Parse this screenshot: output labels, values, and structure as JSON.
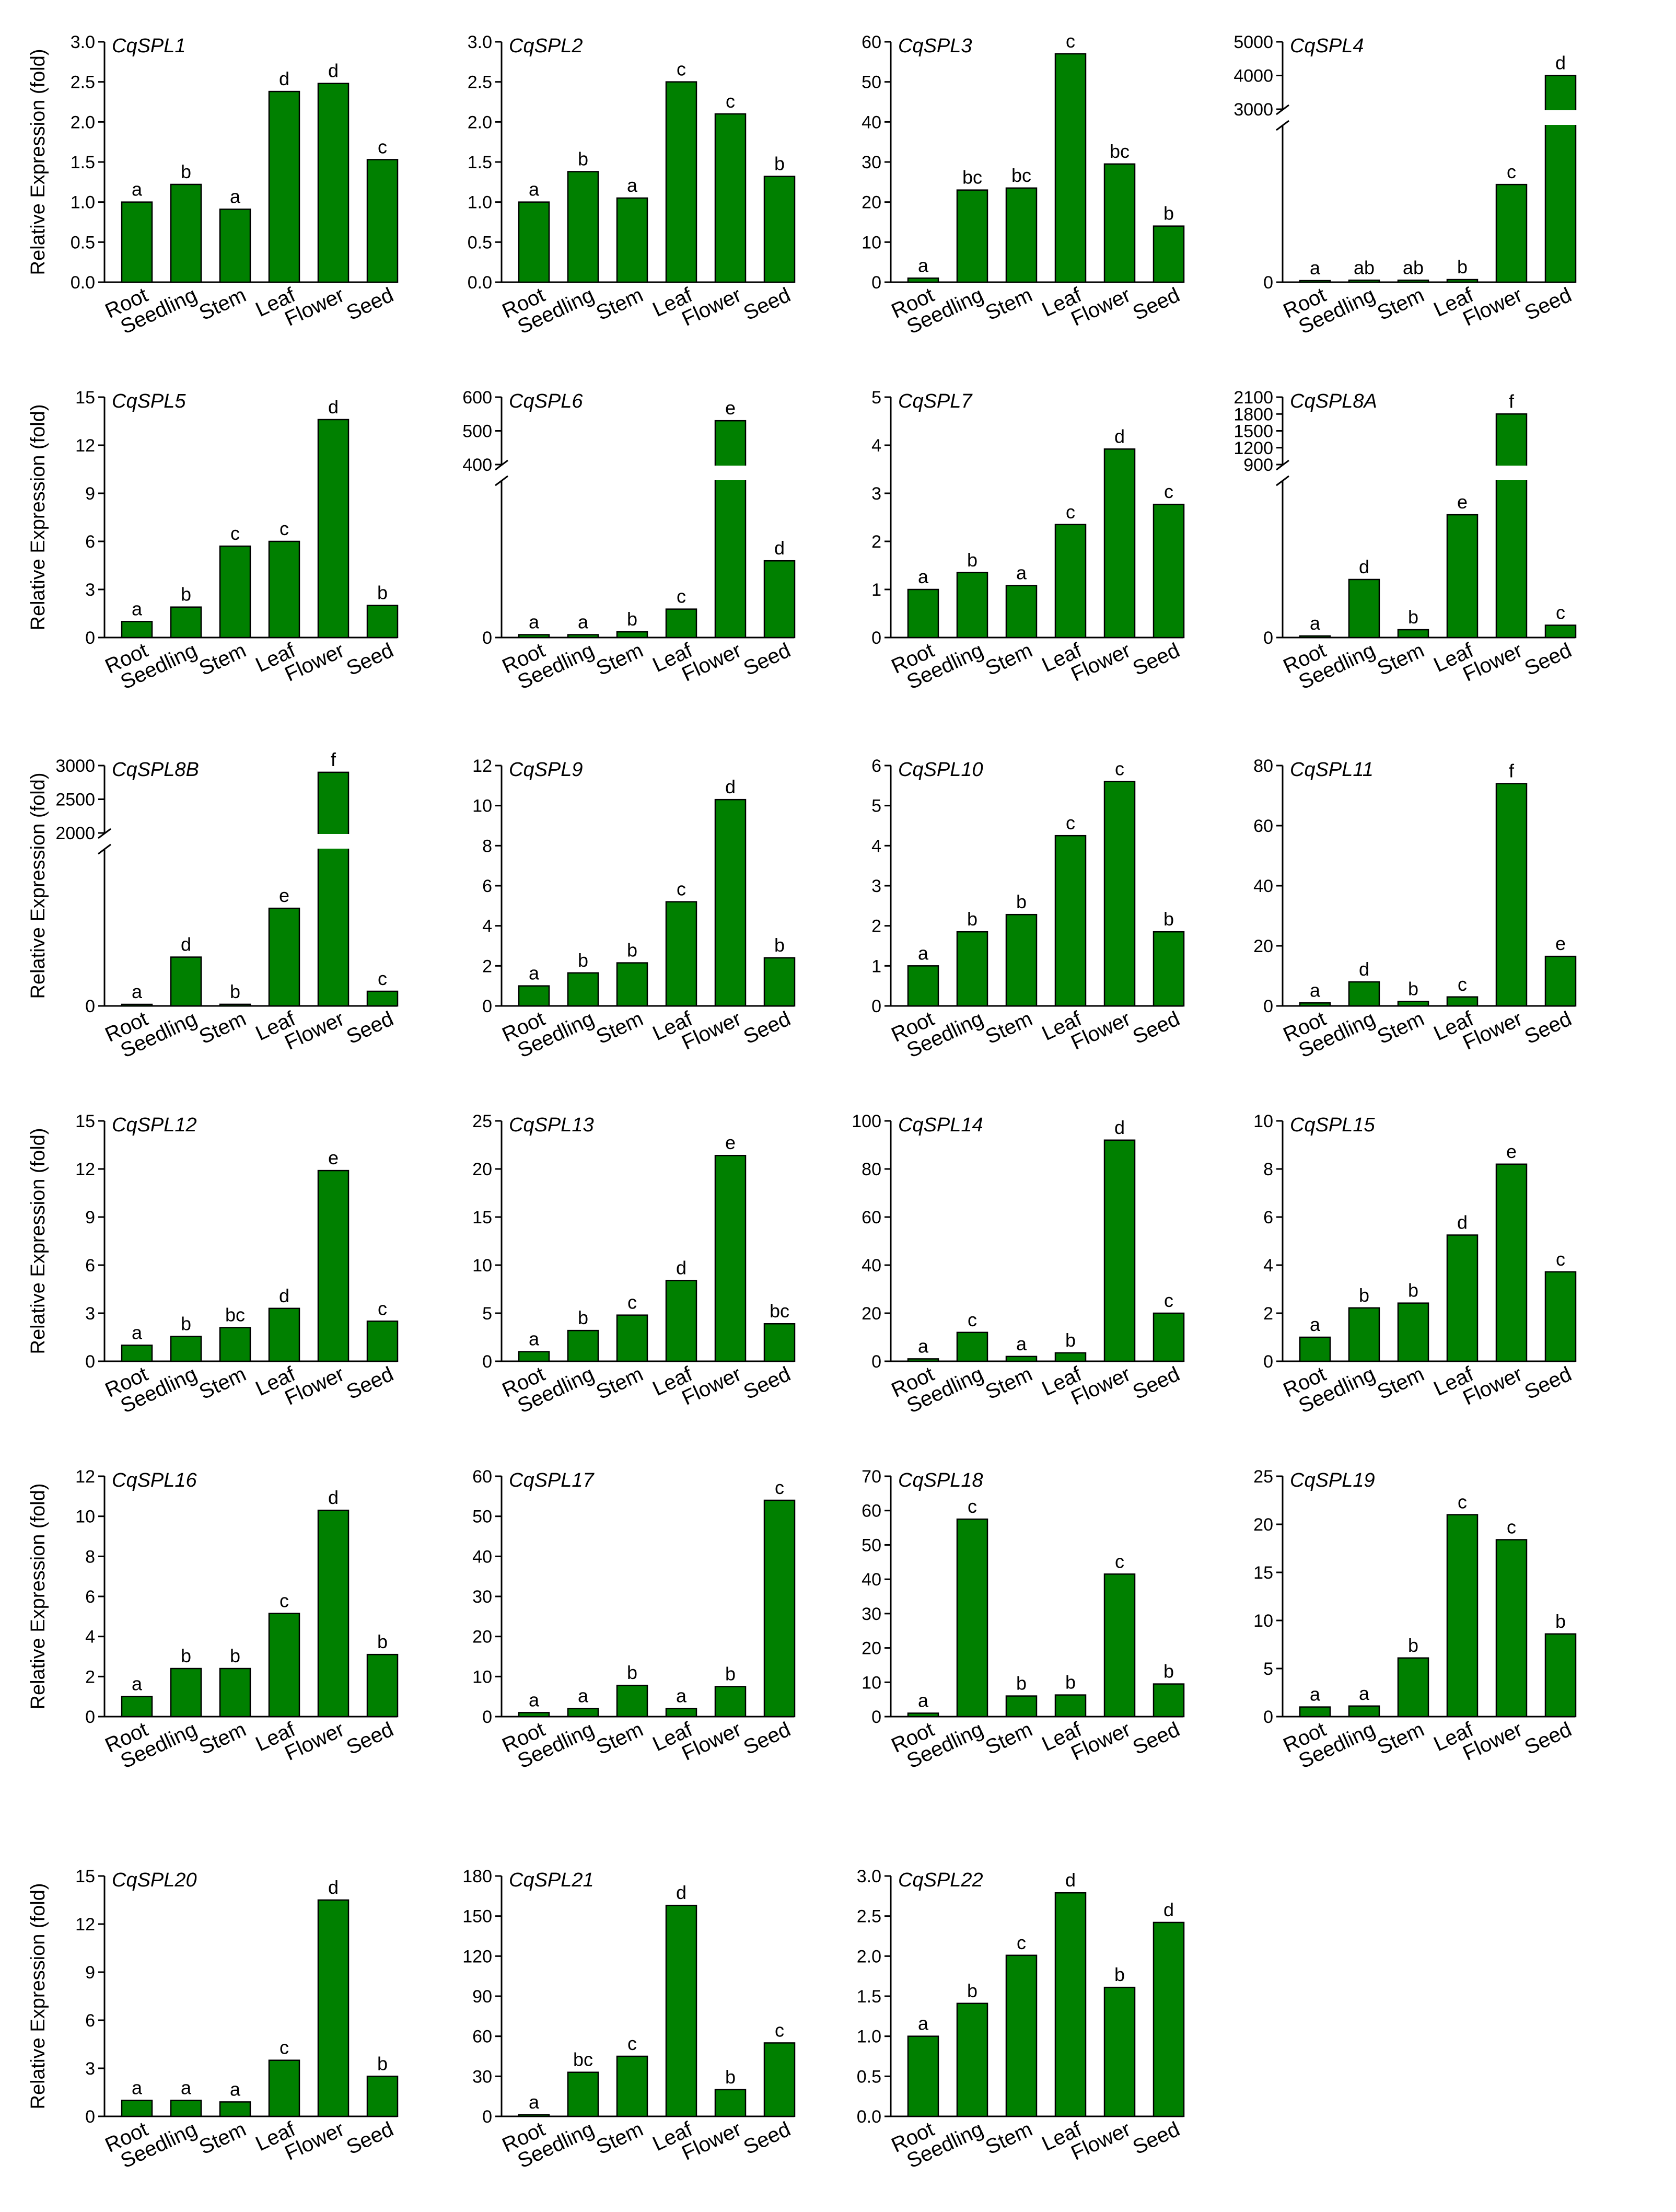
{
  "figure": {
    "y_axis_title": "Relative Expression (fold)",
    "bar_color": "#008000",
    "bar_stroke": "#000000"
  },
  "chart_data": [
    {
      "type": "bar",
      "title": "CqSPL1",
      "categories": [
        "Root",
        "Seedling",
        "Stem",
        "Leaf",
        "Flower",
        "Seed"
      ],
      "values": [
        1.0,
        1.22,
        0.91,
        2.38,
        2.48,
        1.53
      ],
      "letters": [
        "a",
        "b",
        "a",
        "d",
        "d",
        "c"
      ],
      "ylim": [
        0,
        3.0
      ],
      "yticks": [
        "0.0",
        "0.5",
        "1.0",
        "1.5",
        "2.0",
        "2.5",
        "3.0"
      ]
    },
    {
      "type": "bar",
      "title": "CqSPL2",
      "categories": [
        "Root",
        "Seedling",
        "Stem",
        "Leaf",
        "Flower",
        "Seed"
      ],
      "values": [
        1.0,
        1.38,
        1.05,
        2.5,
        2.1,
        1.32
      ],
      "letters": [
        "a",
        "b",
        "a",
        "c",
        "c",
        "b"
      ],
      "ylim": [
        0,
        3.0
      ],
      "yticks": [
        "0.0",
        "0.5",
        "1.0",
        "1.5",
        "2.0",
        "2.5",
        "3.0"
      ]
    },
    {
      "type": "bar",
      "title": "CqSPL3",
      "categories": [
        "Root",
        "Seedling",
        "Stem",
        "Leaf",
        "Flower",
        "Seed"
      ],
      "values": [
        1,
        23,
        23.5,
        57,
        29.5,
        14
      ],
      "letters": [
        "a",
        "bc",
        "bc",
        "c",
        "bc",
        "b"
      ],
      "ylim": [
        0,
        60
      ],
      "yticks": [
        "0",
        "10",
        "20",
        "30",
        "40",
        "50",
        "60"
      ]
    },
    {
      "type": "bar",
      "title": "CqSPL4",
      "categories": [
        "Root",
        "Seedling",
        "Stem",
        "Leaf",
        "Flower",
        "Seed"
      ],
      "values": [
        10,
        30,
        30,
        40,
        1500,
        4000
      ],
      "letters": [
        "a",
        "ab",
        "ab",
        "b",
        "c",
        "d"
      ],
      "ylim": [
        0,
        5000
      ],
      "yticks": [
        "0",
        "3000",
        "4000",
        "5000"
      ],
      "broken": {
        "low_max": 2400,
        "high_min": 3000,
        "high_max": 5000
      },
      "break_note": "y-axis broken between 2400 and 3000"
    },
    {
      "type": "bar",
      "title": "CqSPL5",
      "categories": [
        "Root",
        "Seedling",
        "Stem",
        "Leaf",
        "Flower",
        "Seed"
      ],
      "values": [
        1.0,
        1.9,
        5.7,
        6.0,
        13.6,
        2.0
      ],
      "letters": [
        "a",
        "b",
        "c",
        "c",
        "d",
        "b"
      ],
      "ylim": [
        0,
        15
      ],
      "yticks": [
        "0",
        "3",
        "6",
        "9",
        "12",
        "15"
      ]
    },
    {
      "type": "bar",
      "title": "CqSPL6",
      "categories": [
        "Root",
        "Seedling",
        "Stem",
        "Leaf",
        "Flower",
        "Seed"
      ],
      "values": [
        1,
        1,
        2,
        10,
        530,
        27
      ],
      "letters": [
        "a",
        "a",
        "b",
        "c",
        "e",
        "d"
      ],
      "ylim": [
        0,
        600
      ],
      "yticks": [
        "0",
        "400",
        "500",
        "600"
      ],
      "broken": {
        "low_max": 55,
        "high_min": 400,
        "high_max": 600
      },
      "break_note": "y-axis broken between 55 and 400"
    },
    {
      "type": "bar",
      "title": "CqSPL7",
      "categories": [
        "Root",
        "Seedling",
        "Stem",
        "Leaf",
        "Flower",
        "Seed"
      ],
      "values": [
        1.0,
        1.35,
        1.08,
        2.35,
        3.92,
        2.77
      ],
      "letters": [
        "a",
        "b",
        "a",
        "c",
        "d",
        "c"
      ],
      "ylim": [
        0,
        5
      ],
      "yticks": [
        "0",
        "1",
        "2",
        "3",
        "4",
        "5"
      ]
    },
    {
      "type": "bar",
      "title": "CqSPL8A",
      "categories": [
        "Root",
        "Seedling",
        "Stem",
        "Leaf",
        "Flower",
        "Seed"
      ],
      "values": [
        1,
        52,
        7,
        110,
        1800,
        11
      ],
      "letters": [
        "a",
        "d",
        "b",
        "e",
        "f",
        "c"
      ],
      "ylim": [
        0,
        2100
      ],
      "yticks": [
        "0",
        "900",
        "1200",
        "1500",
        "1800",
        "2100"
      ],
      "broken": {
        "low_max": 140,
        "high_min": 900,
        "high_max": 2100
      },
      "break_note": "y-axis broken between 140 and 900"
    },
    {
      "type": "bar",
      "title": "CqSPL8B",
      "categories": [
        "Root",
        "Seedling",
        "Stem",
        "Leaf",
        "Flower",
        "Seed"
      ],
      "values": [
        1,
        150,
        5,
        300,
        2900,
        45
      ],
      "letters": [
        "a",
        "d",
        "b",
        "e",
        "f",
        "c"
      ],
      "ylim": [
        0,
        3000
      ],
      "yticks": [
        "0",
        "2000",
        "2500",
        "3000"
      ],
      "broken": {
        "low_max": 480,
        "high_min": 2000,
        "high_max": 3000
      },
      "break_note": "y-axis broken between 480 and 2000"
    },
    {
      "type": "bar",
      "title": "CqSPL9",
      "categories": [
        "Root",
        "Seedling",
        "Stem",
        "Leaf",
        "Flower",
        "Seed"
      ],
      "values": [
        1.0,
        1.65,
        2.15,
        5.2,
        10.3,
        2.4
      ],
      "letters": [
        "a",
        "b",
        "b",
        "c",
        "d",
        "b"
      ],
      "ylim": [
        0,
        12
      ],
      "yticks": [
        "0",
        "2",
        "4",
        "6",
        "8",
        "10",
        "12"
      ]
    },
    {
      "type": "bar",
      "title": "CqSPL10",
      "categories": [
        "Root",
        "Seedling",
        "Stem",
        "Leaf",
        "Flower",
        "Seed"
      ],
      "values": [
        1.0,
        1.85,
        2.28,
        4.25,
        5.6,
        1.85
      ],
      "letters": [
        "a",
        "b",
        "b",
        "c",
        "c",
        "b"
      ],
      "ylim": [
        0,
        6
      ],
      "yticks": [
        "0",
        "1",
        "2",
        "3",
        "4",
        "5",
        "6"
      ]
    },
    {
      "type": "bar",
      "title": "CqSPL11",
      "categories": [
        "Root",
        "Seedling",
        "Stem",
        "Leaf",
        "Flower",
        "Seed"
      ],
      "values": [
        1,
        8,
        1.5,
        3,
        74,
        16.5
      ],
      "letters": [
        "a",
        "d",
        "b",
        "c",
        "f",
        "e"
      ],
      "ylim": [
        0,
        80
      ],
      "yticks": [
        "0",
        "20",
        "40",
        "60",
        "80"
      ]
    },
    {
      "type": "bar",
      "title": "CqSPL12",
      "categories": [
        "Root",
        "Seedling",
        "Stem",
        "Leaf",
        "Flower",
        "Seed"
      ],
      "values": [
        1.0,
        1.55,
        2.1,
        3.3,
        11.9,
        2.5
      ],
      "letters": [
        "a",
        "b",
        "bc",
        "d",
        "e",
        "c"
      ],
      "ylim": [
        0,
        15
      ],
      "yticks": [
        "0",
        "3",
        "6",
        "9",
        "12",
        "15"
      ]
    },
    {
      "type": "bar",
      "title": "CqSPL13",
      "categories": [
        "Root",
        "Seedling",
        "Stem",
        "Leaf",
        "Flower",
        "Seed"
      ],
      "values": [
        1.0,
        3.2,
        4.8,
        8.4,
        21.4,
        3.9
      ],
      "letters": [
        "a",
        "b",
        "c",
        "d",
        "e",
        "bc"
      ],
      "ylim": [
        0,
        25
      ],
      "yticks": [
        "0",
        "5",
        "10",
        "15",
        "20",
        "25"
      ]
    },
    {
      "type": "bar",
      "title": "CqSPL14",
      "categories": [
        "Root",
        "Seedling",
        "Stem",
        "Leaf",
        "Flower",
        "Seed"
      ],
      "values": [
        1,
        12,
        2,
        3.5,
        92,
        20
      ],
      "letters": [
        "a",
        "c",
        "a",
        "b",
        "d",
        "c"
      ],
      "ylim": [
        0,
        100
      ],
      "yticks": [
        "0",
        "20",
        "40",
        "60",
        "80",
        "100"
      ]
    },
    {
      "type": "bar",
      "title": "CqSPL15",
      "categories": [
        "Root",
        "Seedling",
        "Stem",
        "Leaf",
        "Flower",
        "Seed"
      ],
      "values": [
        1.0,
        2.22,
        2.42,
        5.25,
        8.2,
        3.72
      ],
      "letters": [
        "a",
        "b",
        "b",
        "d",
        "e",
        "c"
      ],
      "ylim": [
        0,
        10
      ],
      "yticks": [
        "0",
        "2",
        "4",
        "6",
        "8",
        "10"
      ]
    },
    {
      "type": "bar",
      "title": "CqSPL16",
      "categories": [
        "Root",
        "Seedling",
        "Stem",
        "Leaf",
        "Flower",
        "Seed"
      ],
      "values": [
        1.0,
        2.4,
        2.4,
        5.15,
        10.3,
        3.1
      ],
      "letters": [
        "a",
        "b",
        "b",
        "c",
        "d",
        "b"
      ],
      "ylim": [
        0,
        12
      ],
      "yticks": [
        "0",
        "2",
        "4",
        "6",
        "8",
        "10",
        "12"
      ]
    },
    {
      "type": "bar",
      "title": "CqSPL17",
      "categories": [
        "Root",
        "Seedling",
        "Stem",
        "Leaf",
        "Flower",
        "Seed"
      ],
      "values": [
        1,
        2,
        7.8,
        2,
        7.5,
        54
      ],
      "letters": [
        "a",
        "a",
        "b",
        "a",
        "b",
        "c"
      ],
      "ylim": [
        0,
        60
      ],
      "yticks": [
        "0",
        "10",
        "20",
        "30",
        "40",
        "50",
        "60"
      ]
    },
    {
      "type": "bar",
      "title": "CqSPL18",
      "categories": [
        "Root",
        "Seedling",
        "Stem",
        "Leaf",
        "Flower",
        "Seed"
      ],
      "values": [
        1,
        57.5,
        6,
        6.3,
        41.5,
        9.5
      ],
      "letters": [
        "a",
        "c",
        "b",
        "b",
        "c",
        "b"
      ],
      "ylim": [
        0,
        70
      ],
      "yticks": [
        "0",
        "10",
        "20",
        "30",
        "40",
        "50",
        "60",
        "70"
      ]
    },
    {
      "type": "bar",
      "title": "CqSPL19",
      "categories": [
        "Root",
        "Seedling",
        "Stem",
        "Leaf",
        "Flower",
        "Seed"
      ],
      "values": [
        1.0,
        1.1,
        6.1,
        21.0,
        18.4,
        8.6
      ],
      "letters": [
        "a",
        "a",
        "b",
        "c",
        "c",
        "b"
      ],
      "ylim": [
        0,
        25
      ],
      "yticks": [
        "0",
        "5",
        "10",
        "15",
        "20",
        "25"
      ]
    },
    {
      "type": "bar",
      "title": "CqSPL20",
      "categories": [
        "Root",
        "Seedling",
        "Stem",
        "Leaf",
        "Flower",
        "Seed"
      ],
      "values": [
        1.0,
        1.0,
        0.9,
        3.5,
        13.5,
        2.5
      ],
      "letters": [
        "a",
        "a",
        "a",
        "c",
        "d",
        "b"
      ],
      "ylim": [
        0,
        15
      ],
      "yticks": [
        "0",
        "3",
        "6",
        "9",
        "12",
        "15"
      ]
    },
    {
      "type": "bar",
      "title": "CqSPL21",
      "categories": [
        "Root",
        "Seedling",
        "Stem",
        "Leaf",
        "Flower",
        "Seed"
      ],
      "values": [
        1,
        33,
        45,
        158,
        20,
        55
      ],
      "letters": [
        "a",
        "bc",
        "c",
        "d",
        "b",
        "c"
      ],
      "ylim": [
        0,
        180
      ],
      "yticks": [
        "0",
        "30",
        "60",
        "90",
        "120",
        "150",
        "180"
      ]
    },
    {
      "type": "bar",
      "title": "CqSPL22",
      "categories": [
        "Root",
        "Seedling",
        "Stem",
        "Leaf",
        "Flower",
        "Seed"
      ],
      "values": [
        1.0,
        1.41,
        2.01,
        2.79,
        1.61,
        2.42
      ],
      "letters": [
        "a",
        "b",
        "c",
        "d",
        "b",
        "d"
      ],
      "ylim": [
        0,
        3.0
      ],
      "yticks": [
        "0.0",
        "0.5",
        "1.0",
        "1.5",
        "2.0",
        "2.5",
        "3.0"
      ]
    }
  ]
}
